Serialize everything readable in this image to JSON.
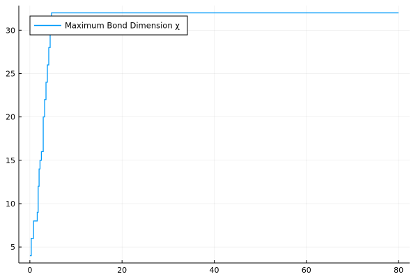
{
  "chart_data": {
    "type": "line",
    "title": "",
    "xlabel": "",
    "ylabel": "",
    "xlim": [
      -2.4,
      82.4
    ],
    "ylim": [
      3.16,
      32.84
    ],
    "xticks": [
      0,
      20,
      40,
      60,
      80
    ],
    "yticks": [
      5,
      10,
      15,
      20,
      25,
      30
    ],
    "grid": true,
    "legend_position": "top-left",
    "series": [
      {
        "name": "Maximum Bond Dimension χ",
        "color": "#009AFA",
        "step": true,
        "x": [
          0,
          0.3,
          0.8,
          1.6,
          1.8,
          2.0,
          2.2,
          2.5,
          2.9,
          3.2,
          3.5,
          3.8,
          4.1,
          4.4,
          4.7,
          80
        ],
        "y": [
          4,
          6,
          8,
          9,
          12,
          14,
          15,
          16,
          20,
          22,
          24,
          26,
          28,
          30,
          32,
          32
        ]
      }
    ]
  }
}
